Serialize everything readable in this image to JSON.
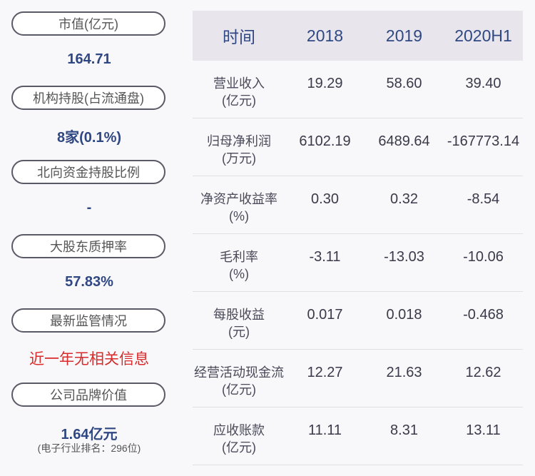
{
  "summary": {
    "market_cap": {
      "label": "市值(亿元)",
      "value": "164.71"
    },
    "institution": {
      "label": "机构持股(占流通盘)",
      "value": "8家(0.1%)"
    },
    "northbound": {
      "label": "北向资金持股比例",
      "value": "-"
    },
    "pledge": {
      "label": "大股东质押率",
      "value": "57.83%"
    },
    "regulation": {
      "label": "最新监管情况",
      "value": "近一年无相关信息"
    },
    "brand": {
      "label": "公司品牌价值",
      "value": "1.64亿元",
      "note": "(电子行业排名：296位)"
    }
  },
  "table": {
    "headers": [
      "时间",
      "2018",
      "2019",
      "2020H1"
    ],
    "rows": [
      {
        "label": "营业收入",
        "unit": "(亿元)",
        "values": [
          "19.29",
          "58.60",
          "39.40"
        ]
      },
      {
        "label": "归母净利润",
        "unit": "(万元)",
        "values": [
          "6102.19",
          "6489.64",
          "-167773.14"
        ]
      },
      {
        "label": "净资产收益率",
        "unit": "(%)",
        "values": [
          "0.30",
          "0.32",
          "-8.54"
        ]
      },
      {
        "label": "毛利率",
        "unit": "(%)",
        "values": [
          "-3.11",
          "-13.03",
          "-10.06"
        ]
      },
      {
        "label": "每股收益",
        "unit": "(元)",
        "values": [
          "0.017",
          "0.018",
          "-0.468"
        ]
      },
      {
        "label": "经营活动现金流",
        "unit": "(亿元)",
        "values": [
          "12.27",
          "21.63",
          "12.62"
        ]
      },
      {
        "label": "应收账款",
        "unit": "(亿元)",
        "values": [
          "11.11",
          "8.31",
          "13.11"
        ]
      }
    ]
  }
}
